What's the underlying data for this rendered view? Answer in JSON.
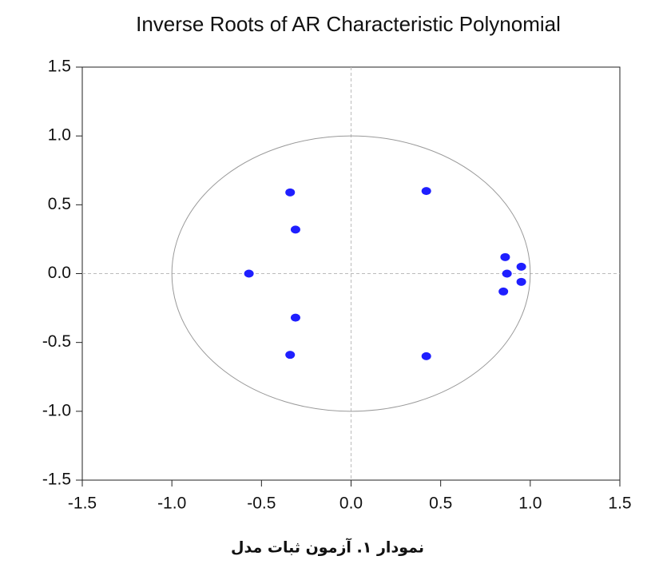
{
  "chart_data": {
    "type": "scatter",
    "title": "Inverse Roots of AR Characteristic Polynomial",
    "caption": "نمودار ۱. آزمون ثبات مدل",
    "series": [
      {
        "color": "#1f1fff",
        "x": [
          -0.34,
          0.42,
          -0.31,
          -0.57,
          -0.31,
          -0.34,
          0.42,
          0.86,
          0.95,
          0.87,
          0.95,
          0.85
        ],
        "values": [
          0.59,
          0.6,
          0.32,
          0.0,
          -0.32,
          -0.59,
          -0.6,
          0.12,
          0.05,
          0.0,
          -0.06,
          -0.13
        ]
      }
    ],
    "xlim": [
      -1.5,
      1.5
    ],
    "ylim": [
      -1.5,
      1.5
    ],
    "xticks": [
      -1.5,
      {
        "value": -1,
        "label": "-1.0"
      },
      -0.5,
      {
        "value": 0,
        "label": "0.0"
      },
      0.5,
      {
        "value": 1,
        "label": "1.0"
      },
      1.5
    ],
    "yticks": [
      -1.5,
      {
        "value": -1,
        "label": "-1.0"
      },
      -0.5,
      {
        "value": 0,
        "label": "0.0"
      },
      0.5,
      {
        "value": 1,
        "label": "1.0"
      },
      1.5
    ],
    "unit_circle": true,
    "zero_lines": true
  }
}
